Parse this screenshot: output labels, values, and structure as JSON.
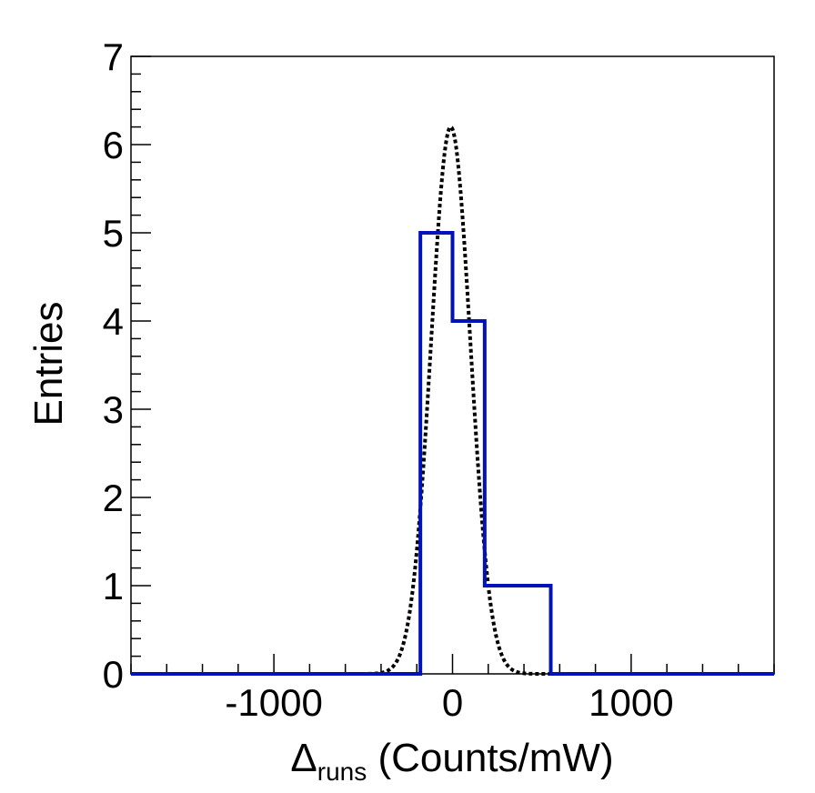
{
  "chart_data": {
    "type": "bar",
    "xlabel_symbol": "Δ",
    "xlabel_subscript": "runs",
    "xlabel_rest": " (Counts/mW)",
    "ylabel": "Entries",
    "xlim": [
      -1800,
      1800
    ],
    "ylim": [
      0,
      7
    ],
    "x_ticks": [
      -1000,
      0,
      1000
    ],
    "x_tick_labels": [
      "-1000",
      "0",
      "1000"
    ],
    "y_ticks": [
      0,
      1,
      2,
      3,
      4,
      5,
      6,
      7
    ],
    "y_tick_labels": [
      "0",
      "1",
      "2",
      "3",
      "4",
      "5",
      "6",
      "7"
    ],
    "grid": false,
    "histogram": {
      "name": "",
      "color": "#0012b8",
      "bin_edges": [
        -1800,
        -180,
        0,
        180,
        550,
        1800
      ],
      "counts": [
        0,
        5,
        4,
        1,
        0
      ]
    },
    "fit": {
      "type": "gaussian",
      "color": "#000000",
      "style": "dotted",
      "amplitude": 6.2,
      "mean": -10,
      "sigma": 110
    }
  }
}
